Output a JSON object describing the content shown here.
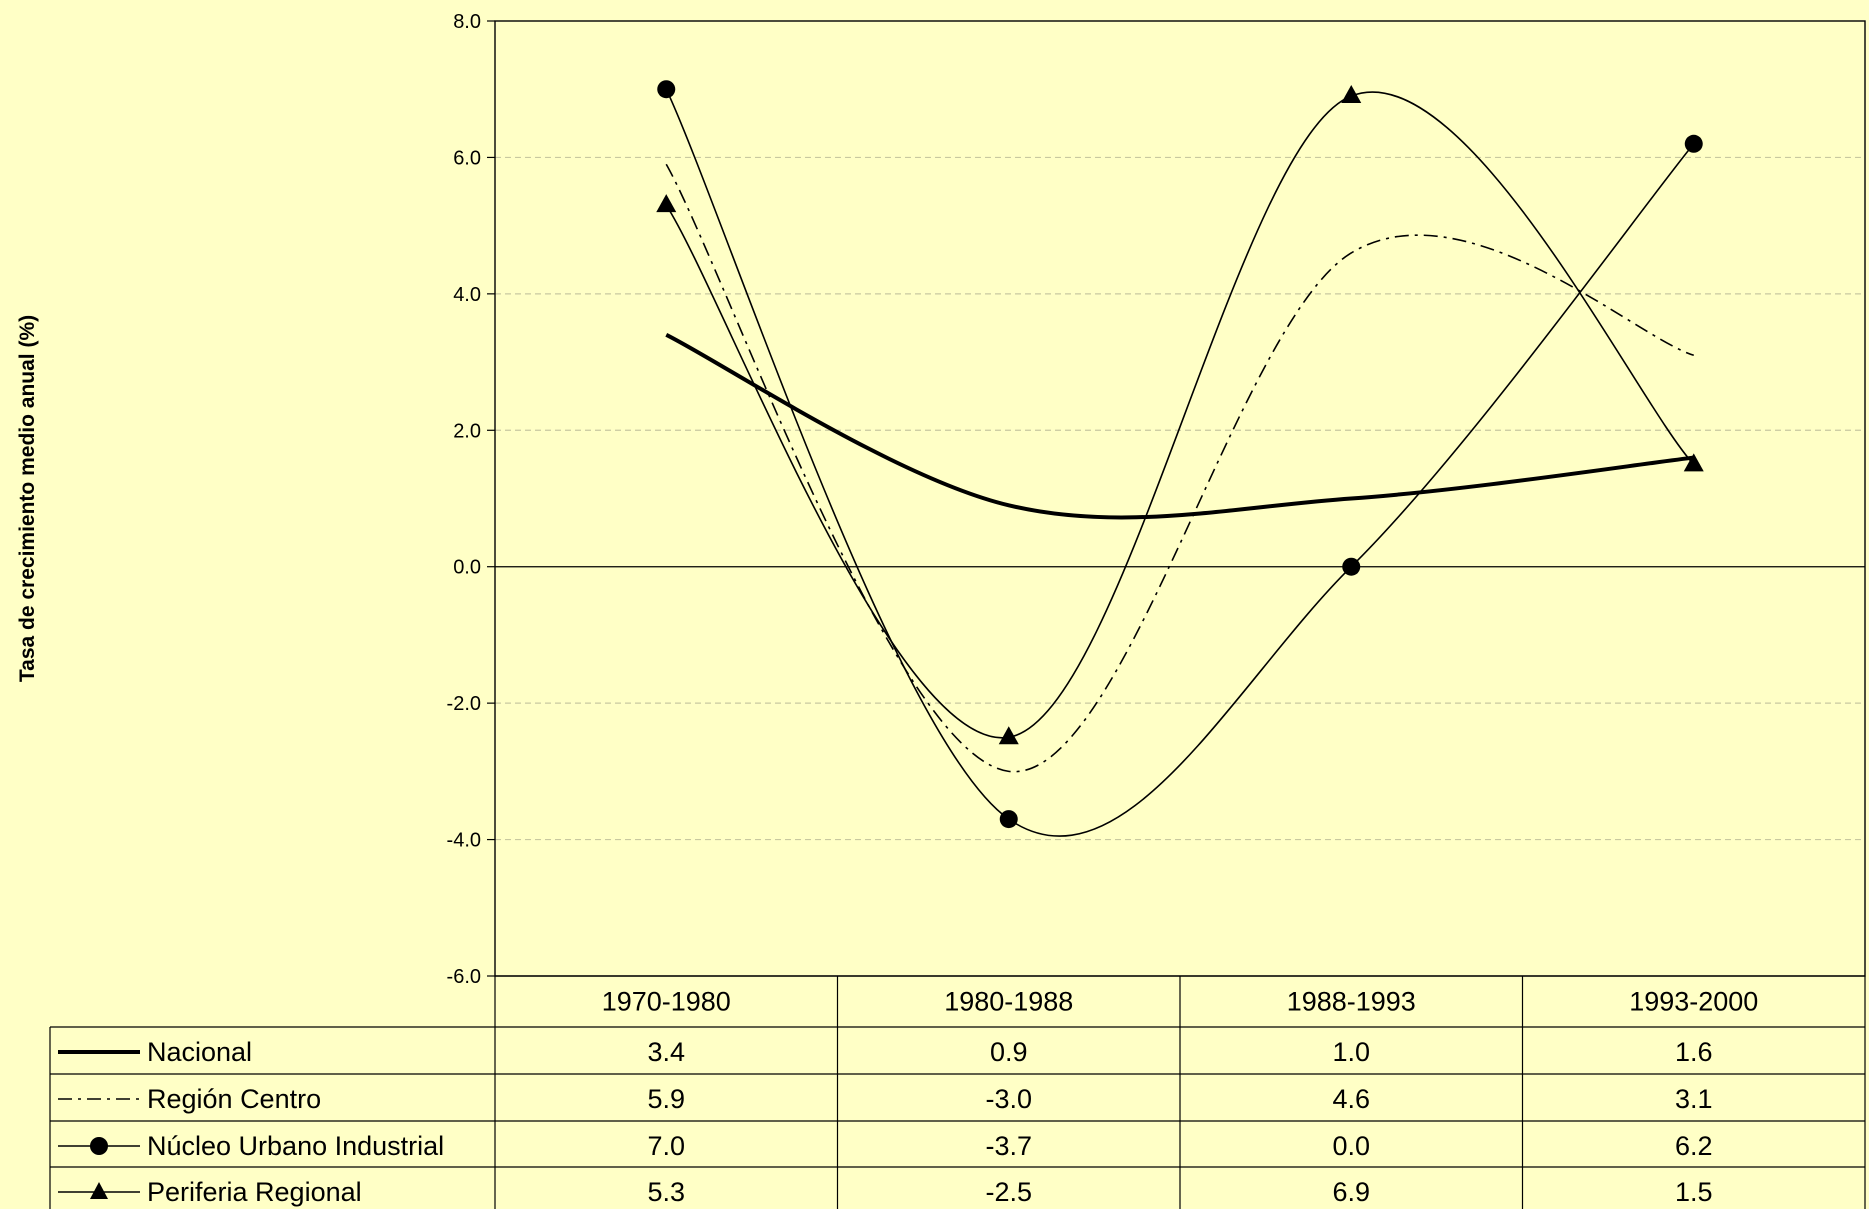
{
  "chart_data": {
    "type": "line",
    "title": "",
    "xlabel": "",
    "ylabel": "Tasa de crecimiento medio anual (%)",
    "categories": [
      "1970-1980",
      "1980-1988",
      "1988-1993",
      "1993-2000"
    ],
    "ylim": [
      -6.0,
      8.0
    ],
    "yticks": [
      "8.0",
      "6.0",
      "4.0",
      "2.0",
      "0.0",
      "-2.0",
      "-4.0",
      "-6.0"
    ],
    "grid": true,
    "legend": "data-table-below",
    "smoothed": true,
    "series": [
      {
        "name": "Nacional",
        "values": [
          3.4,
          0.9,
          1.0,
          1.6
        ],
        "display": [
          "3.4",
          "0.9",
          "1.0",
          "1.6"
        ],
        "style": "thick",
        "marker": "none"
      },
      {
        "name": "Región Centro",
        "values": [
          5.9,
          -3.0,
          4.6,
          3.1
        ],
        "display": [
          "5.9",
          "-3.0",
          "4.6",
          "3.1"
        ],
        "style": "dash-dot",
        "marker": "none"
      },
      {
        "name": "Núcleo Urbano Industrial",
        "values": [
          7.0,
          -3.7,
          0.0,
          6.2
        ],
        "display": [
          "7.0",
          "-3.7",
          "0.0",
          "6.2"
        ],
        "style": "solid",
        "marker": "circle"
      },
      {
        "name": "Periferia Regional",
        "values": [
          5.3,
          -2.5,
          6.9,
          1.5
        ],
        "display": [
          "5.3",
          "-2.5",
          "6.9",
          "1.5"
        ],
        "style": "solid",
        "marker": "triangle"
      }
    ]
  },
  "colors": {
    "background": "#FFFFC6",
    "line": "#000000",
    "gridline": "#C8C8A0"
  }
}
